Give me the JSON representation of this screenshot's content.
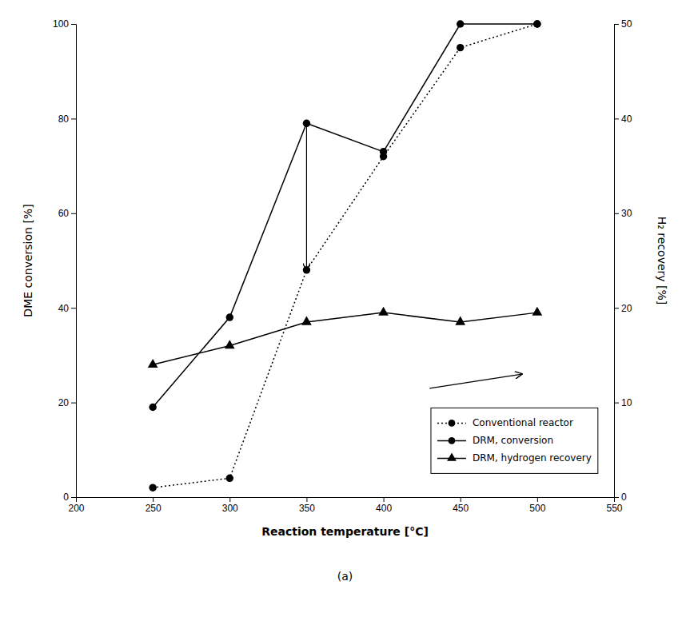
{
  "chart_data": {
    "type": "line",
    "xlabel": "Reaction temperature [°C]",
    "ylabel": "DME conversion [%]",
    "y2label": "H₂ recovery [%]",
    "caption": "(a)",
    "x": [
      250,
      300,
      350,
      400,
      450,
      500
    ],
    "xlim": [
      200,
      550
    ],
    "xticks": [
      200,
      250,
      300,
      350,
      400,
      450,
      500,
      550
    ],
    "ylim": [
      0,
      100
    ],
    "yticks": [
      0,
      20,
      40,
      60,
      80,
      100
    ],
    "y2lim": [
      0,
      50
    ],
    "y2ticks": [
      0,
      10,
      20,
      30,
      40,
      50
    ],
    "series": [
      {
        "name": "Conventional reactor",
        "color": "black",
        "marker": "circle",
        "line_style": "dotted",
        "values": [
          2,
          4,
          48,
          72,
          95,
          100
        ]
      },
      {
        "name": "DRM, conversion",
        "color": "black",
        "marker": "circle",
        "line_style": "solid",
        "values": [
          19,
          38,
          79,
          73,
          100,
          100
        ]
      },
      {
        "name": "DRM, hydrogen recovery",
        "color": "black",
        "marker": "triangle",
        "line_style": "solid",
        "axis": "y2",
        "values": [
          14,
          16,
          18.5,
          19.5,
          18.5,
          19.5
        ]
      }
    ],
    "arrows": [
      {
        "xy": [
          350,
          48
        ],
        "xytext": [
          350,
          79
        ]
      },
      {
        "xy": [
          490,
          26
        ],
        "xytext": [
          430,
          23
        ]
      }
    ],
    "legend": "lower right",
    "grid": false
  }
}
